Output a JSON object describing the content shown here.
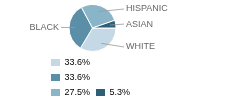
{
  "chart_data": {
    "type": "pie",
    "categories": [
      "WHITE",
      "BLACK",
      "HISPANIC",
      "ASIAN"
    ],
    "values": [
      33.6,
      33.6,
      27.5,
      5.3
    ],
    "value_labels": [
      "33.6%",
      "33.6%",
      "27.5%",
      "5.3%"
    ],
    "colors": [
      "#c5d8e5",
      "#5b8fa8",
      "#8ab4c8",
      "#2d5f78"
    ],
    "legend": "bottom"
  }
}
